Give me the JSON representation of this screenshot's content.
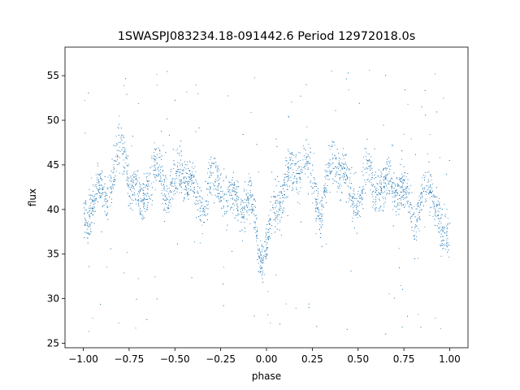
{
  "chart_data": {
    "type": "scatter",
    "title": "1SWASPJ083234.18-091442.6 Period 12972018.0s",
    "xlabel": "phase",
    "ylabel": "flux",
    "xlim": [
      -1.1,
      1.1
    ],
    "ylim": [
      24.5,
      58.2
    ],
    "xticks": [
      -1.0,
      -0.75,
      -0.5,
      -0.25,
      0.0,
      0.25,
      0.5,
      0.75,
      1.0
    ],
    "xtick_labels": [
      "−1.00",
      "−0.75",
      "−0.50",
      "−0.25",
      "0.00",
      "0.25",
      "0.50",
      "0.75",
      "1.00"
    ],
    "yticks": [
      25,
      30,
      35,
      40,
      45,
      50,
      55
    ],
    "ytick_labels": [
      "25",
      "30",
      "35",
      "40",
      "45",
      "50",
      "55"
    ],
    "marker_color": "#1f77b4",
    "grid": false,
    "legend": false,
    "phase_curve": [
      {
        "x": -1.0,
        "y": 38.5
      },
      {
        "x": -0.97,
        "y": 40.0
      },
      {
        "x": -0.94,
        "y": 41.5
      },
      {
        "x": -0.9,
        "y": 42.5
      },
      {
        "x": -0.86,
        "y": 43.5
      },
      {
        "x": -0.83,
        "y": 44.5
      },
      {
        "x": -0.8,
        "y": 47.0
      },
      {
        "x": -0.77,
        "y": 45.0
      },
      {
        "x": -0.74,
        "y": 42.0
      },
      {
        "x": -0.7,
        "y": 40.0
      },
      {
        "x": -0.66,
        "y": 43.0
      },
      {
        "x": -0.62,
        "y": 45.0
      },
      {
        "x": -0.58,
        "y": 44.5
      },
      {
        "x": -0.54,
        "y": 42.0
      },
      {
        "x": -0.5,
        "y": 42.0
      },
      {
        "x": -0.47,
        "y": 43.5
      },
      {
        "x": -0.44,
        "y": 44.0
      },
      {
        "x": -0.4,
        "y": 42.0
      },
      {
        "x": -0.36,
        "y": 41.0
      },
      {
        "x": -0.32,
        "y": 43.0
      },
      {
        "x": -0.28,
        "y": 43.5
      },
      {
        "x": -0.24,
        "y": 42.0
      },
      {
        "x": -0.2,
        "y": 40.0
      },
      {
        "x": -0.15,
        "y": 40.5
      },
      {
        "x": -0.1,
        "y": 42.0
      },
      {
        "x": -0.07,
        "y": 40.0
      },
      {
        "x": -0.04,
        "y": 36.0
      },
      {
        "x": -0.01,
        "y": 35.5
      },
      {
        "x": 0.02,
        "y": 37.5
      },
      {
        "x": 0.05,
        "y": 39.5
      },
      {
        "x": 0.1,
        "y": 42.5
      },
      {
        "x": 0.15,
        "y": 44.0
      },
      {
        "x": 0.2,
        "y": 47.0
      },
      {
        "x": 0.23,
        "y": 45.0
      },
      {
        "x": 0.26,
        "y": 42.0
      },
      {
        "x": 0.3,
        "y": 40.0
      },
      {
        "x": 0.34,
        "y": 43.0
      },
      {
        "x": 0.38,
        "y": 45.0
      },
      {
        "x": 0.42,
        "y": 44.5
      },
      {
        "x": 0.46,
        "y": 42.0
      },
      {
        "x": 0.5,
        "y": 42.0
      },
      {
        "x": 0.53,
        "y": 43.5
      },
      {
        "x": 0.56,
        "y": 44.0
      },
      {
        "x": 0.6,
        "y": 42.0
      },
      {
        "x": 0.64,
        "y": 41.0
      },
      {
        "x": 0.68,
        "y": 43.0
      },
      {
        "x": 0.72,
        "y": 43.5
      },
      {
        "x": 0.76,
        "y": 42.0
      },
      {
        "x": 0.8,
        "y": 40.0
      },
      {
        "x": 0.85,
        "y": 40.5
      },
      {
        "x": 0.9,
        "y": 42.0
      },
      {
        "x": 0.93,
        "y": 40.0
      },
      {
        "x": 0.96,
        "y": 36.0
      },
      {
        "x": 1.0,
        "y": 37.5
      }
    ],
    "scatter_spread": 1.8,
    "outlier_range": [
      26,
      56
    ],
    "n_points": 4200
  }
}
